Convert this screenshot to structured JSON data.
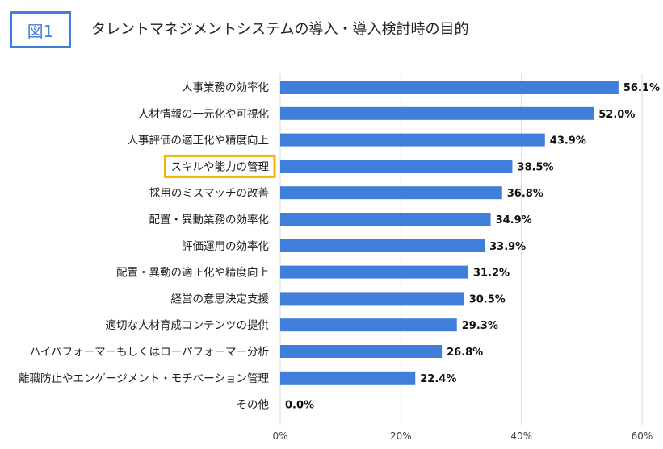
{
  "figure_label": "図1",
  "colors": {
    "bar": "#3f7fd9",
    "accent": "#3f7fd9",
    "highlight": "#f2b400",
    "grid": "#d9d9d9"
  },
  "chart_data": {
    "type": "bar",
    "orientation": "horizontal",
    "title": "タレントマネジメントシステムの導入・導入検討時の目的",
    "categories": [
      "人事業務の効率化",
      "人材情報の一元化や可視化",
      "人事評価の適正化や精度向上",
      "スキルや能力の管理",
      "採用のミスマッチの改善",
      "配置・異動業務の効率化",
      "評価運用の効率化",
      "配置・異動の適正化や精度向上",
      "経営の意思決定支援",
      "適切な人材育成コンテンツの提供",
      "ハイパフォーマーもしくはローパフォーマー分析",
      "離職防止やエンゲージメント・モチベーション管理",
      "その他"
    ],
    "values": [
      56.1,
      52.0,
      43.9,
      38.5,
      36.8,
      34.9,
      33.9,
      31.2,
      30.5,
      29.3,
      26.8,
      22.4,
      0.0
    ],
    "value_labels": [
      "56.1%",
      "52.0%",
      "43.9%",
      "38.5%",
      "36.8%",
      "34.9%",
      "33.9%",
      "31.2%",
      "30.5%",
      "29.3%",
      "26.8%",
      "22.4%",
      "0.0%"
    ],
    "highlighted_category": "スキルや能力の管理",
    "xlim": [
      0,
      60
    ],
    "xticks": [
      0,
      20,
      40,
      60
    ],
    "xtick_labels": [
      "0%",
      "20%",
      "40%",
      "60%"
    ],
    "grid": true,
    "legend": "none"
  }
}
